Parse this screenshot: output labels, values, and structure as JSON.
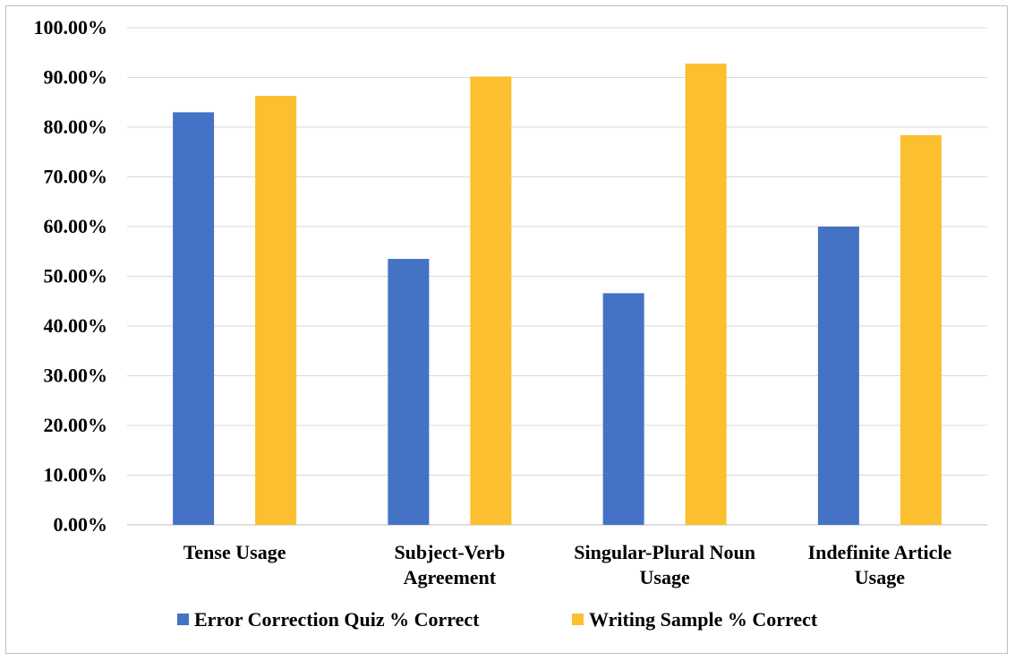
{
  "chart_data": {
    "type": "bar",
    "categories": [
      [
        "Tense Usage"
      ],
      [
        "Subject-Verb",
        "Agreement"
      ],
      [
        "Singular-Plural Noun",
        "Usage"
      ],
      [
        "Indefinite Article",
        "Usage"
      ]
    ],
    "series": [
      {
        "name": "Error Correction Quiz % Correct",
        "values": [
          83.0,
          53.5,
          46.6,
          60.0
        ],
        "color": "#4472c4"
      },
      {
        "name": "Writing Sample % Correct",
        "values": [
          86.3,
          90.2,
          92.8,
          78.4
        ],
        "color": "#fbbf2f"
      }
    ],
    "yticks": [
      "0.00%",
      "10.00%",
      "20.00%",
      "30.00%",
      "40.00%",
      "50.00%",
      "60.00%",
      "70.00%",
      "80.00%",
      "90.00%",
      "100.00%"
    ],
    "ylim": [
      0,
      100
    ],
    "grid": true,
    "legend": "bottom"
  }
}
